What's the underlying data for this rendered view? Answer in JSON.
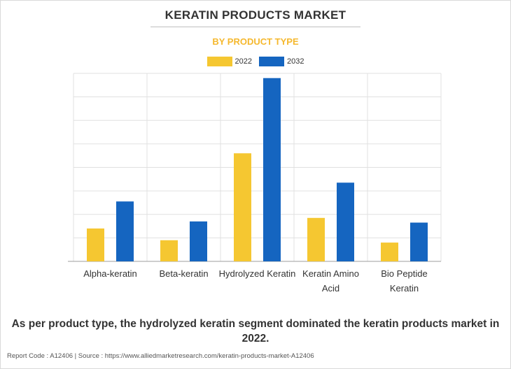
{
  "title": "KERATIN PRODUCTS MARKET",
  "subtitle": "BY PRODUCT TYPE",
  "colors": {
    "series_2022": "#f5c731",
    "series_2032": "#1565c0",
    "subtitle": "#f5b82e",
    "grid": "#e0e0e0"
  },
  "chart_data": {
    "type": "bar",
    "categories": [
      [
        "Alpha-keratin"
      ],
      [
        "Beta-keratin"
      ],
      [
        "Hydrolyzed Keratin"
      ],
      [
        "Keratin Amino",
        "Acid"
      ],
      [
        "Bio Peptide",
        "Keratin"
      ]
    ],
    "series": [
      {
        "name": "2022",
        "color": "#f5c731",
        "values": [
          1.4,
          0.9,
          4.6,
          1.85,
          0.8
        ]
      },
      {
        "name": "2032",
        "color": "#1565c0",
        "values": [
          2.55,
          1.7,
          7.8,
          3.35,
          1.65
        ]
      }
    ],
    "ylim": [
      0,
      8
    ],
    "grid": true,
    "legend": "top-center",
    "yaxis_labels_shown": false
  },
  "footnote": "As per product type, the hydrolyzed keratin segment dominated the keratin products market in 2022.",
  "source_line": "Report Code : A12406  |  Source : https://www.alliedmarketresearch.com/keratin-products-market-A12406"
}
